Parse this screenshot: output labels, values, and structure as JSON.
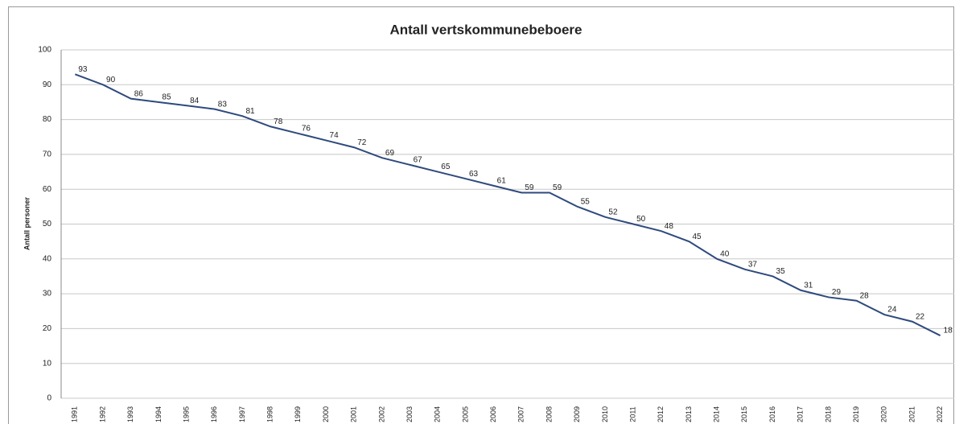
{
  "chart_data": {
    "type": "line",
    "title": "Antall vertskommunebeboere",
    "y_label": "Antall personer",
    "categories": [
      "1991",
      "1992",
      "1993",
      "1994",
      "1995",
      "1996",
      "1997",
      "1998",
      "1999",
      "2000",
      "2001",
      "2002",
      "2003",
      "2004",
      "2005",
      "2006",
      "2007",
      "2008",
      "2009",
      "2010",
      "2011",
      "2012",
      "2013",
      "2014",
      "2015",
      "2016",
      "2017",
      "2018",
      "2019",
      "2020",
      "2021",
      "2022"
    ],
    "series": [
      {
        "name": "Antall vertskommunebeboere",
        "color": "#2e4a7d",
        "values": [
          93,
          90,
          86,
          85,
          84,
          83,
          81,
          78,
          76,
          74,
          72,
          69,
          67,
          65,
          63,
          61,
          59,
          59,
          55,
          52,
          50,
          48,
          45,
          40,
          37,
          35,
          31,
          29,
          28,
          24,
          22,
          18
        ]
      }
    ],
    "ylim": [
      0,
      100
    ],
    "yticks": [
      0,
      10,
      20,
      30,
      40,
      50,
      60,
      70,
      80,
      90,
      100
    ],
    "grid": true
  }
}
